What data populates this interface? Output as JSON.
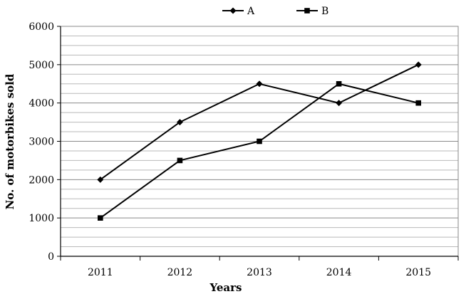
{
  "chart_data": {
    "type": "line",
    "title": "",
    "xlabel": "Years",
    "ylabel": "No. of motorbikes sold",
    "categories": [
      "2011",
      "2012",
      "2013",
      "2014",
      "2015"
    ],
    "ylim": [
      0,
      6000
    ],
    "y_ticks": [
      "0",
      "1000",
      "2000",
      "3000",
      "4000",
      "5000",
      "6000"
    ],
    "grid": true,
    "legend_position": "top",
    "series": [
      {
        "name": "A",
        "marker": "diamond",
        "color": "#000000",
        "values": [
          2000,
          3500,
          4500,
          4000,
          5000
        ]
      },
      {
        "name": "B",
        "marker": "square",
        "color": "#000000",
        "values": [
          1000,
          2500,
          3000,
          4500,
          4000
        ]
      }
    ]
  }
}
